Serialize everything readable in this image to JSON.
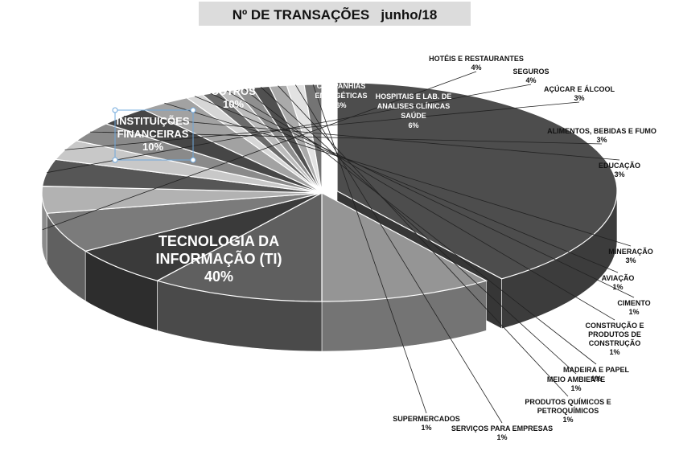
{
  "chart_data": {
    "type": "pie",
    "title": "Nº DE TRANSAÇÕES   junho/18",
    "slices": [
      {
        "label": "TECNOLOGIA DA INFORMAÇÃO (TI)",
        "value": 40,
        "pct": "40%",
        "color": "#4d4d4d"
      },
      {
        "label": "INSTITUIÇÕES FINANCEIRAS",
        "value": 10,
        "pct": "10%",
        "color": "#959595"
      },
      {
        "label": "OUTROS",
        "value": 10,
        "pct": "10%",
        "color": "#5f5f5f"
      },
      {
        "label": "COMPANHIAS ENERGÉTICAS",
        "value": 6,
        "pct": "6%",
        "color": "#3a3a3a"
      },
      {
        "label": "HOSPITAIS E LAB. DE ANALISES CLÍNICAS SAÚDE",
        "value": 6,
        "pct": "6%",
        "color": "#7b7b7b"
      },
      {
        "label": "HOTÉIS E RESTAURANTES",
        "value": 4,
        "pct": "4%",
        "color": "#b2b2b2"
      },
      {
        "label": "SEGUROS",
        "value": 4,
        "pct": "4%",
        "color": "#565656"
      },
      {
        "label": "AÇÚCAR E ÁLCOOL",
        "value": 3,
        "pct": "3%",
        "color": "#c8c8c8"
      },
      {
        "label": "ALIMENTOS, BEBIDAS E FUMO",
        "value": 3,
        "pct": "3%",
        "color": "#8a8a8a"
      },
      {
        "label": "EDUCAÇÃO",
        "value": 3,
        "pct": "3%",
        "color": "#464646"
      },
      {
        "label": "MINERAÇÃO",
        "value": 3,
        "pct": "3%",
        "color": "#a2a2a2"
      },
      {
        "label": "AVIAÇÃO",
        "value": 1,
        "pct": "1%",
        "color": "#d6d6d6"
      },
      {
        "label": "CIMENTO",
        "value": 1,
        "pct": "1%",
        "color": "#6a6a6a"
      },
      {
        "label": "CONSTRUÇÃO E PRODUTOS DE CONSTRUÇÃO",
        "value": 1,
        "pct": "1%",
        "color": "#bdbdbd"
      },
      {
        "label": "MADEIRA E PAPEL",
        "value": 1,
        "pct": "1%",
        "color": "#8f8f8f"
      },
      {
        "label": "MEIO AMBIENTE",
        "value": 1,
        "pct": "1%",
        "color": "#505050"
      },
      {
        "label": "PRODUTOS QUÍMICOS E PETROQUÍMICOS",
        "value": 1,
        "pct": "1%",
        "color": "#aaaaaa"
      },
      {
        "label": "SERVIÇOS PARA EMPRESAS",
        "value": 1,
        "pct": "1%",
        "color": "#e2e2e2"
      },
      {
        "label": "SUPERMERCADOS",
        "value": 1,
        "pct": "1%",
        "color": "#747474"
      }
    ]
  }
}
